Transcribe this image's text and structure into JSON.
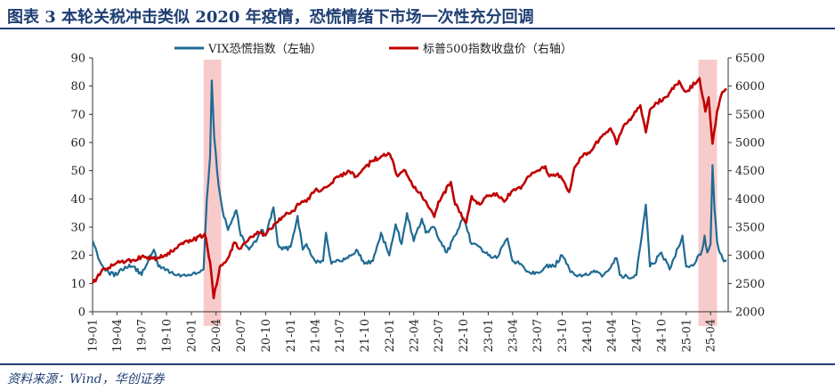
{
  "title": "图表 3   本轮关税冲击类似 2020 年疫情，恐慌情绪下市场一次性充分回调",
  "source": "资料来源：Wind，华创证券",
  "colors": {
    "title": "#1f3f73",
    "vix": "#1f6b93",
    "spx": "#c00000",
    "highlight": "#f7c5c5"
  },
  "chart_data": {
    "type": "line",
    "legend_position": "top",
    "grid": false,
    "x_tick_labels": [
      "19-01",
      "19-04",
      "19-07",
      "19-10",
      "20-01",
      "20-04",
      "20-07",
      "20-10",
      "21-01",
      "21-04",
      "21-07",
      "21-10",
      "22-01",
      "22-04",
      "22-07",
      "22-10",
      "23-01",
      "23-04",
      "23-07",
      "23-10",
      "24-01",
      "24-04",
      "24-07",
      "24-10",
      "25-01",
      "25-04"
    ],
    "y_left": {
      "min": 0,
      "max": 90,
      "ticks": [
        "0",
        "10",
        "20",
        "30",
        "40",
        "50",
        "60",
        "70",
        "80",
        "90"
      ]
    },
    "y_right": {
      "min": 2000,
      "max": 6500,
      "ticks": [
        "2000",
        "2500",
        "3000",
        "3500",
        "4000",
        "4500",
        "5000",
        "5500",
        "6000",
        "6500"
      ]
    },
    "highlight_periods": [
      {
        "from": "2020-02-15",
        "to": "2020-04-20"
      },
      {
        "from": "2025-02-15",
        "to": "2025-04-25"
      }
    ],
    "series": [
      {
        "name": "VIX恐慌指数（左轴）",
        "axis": "left",
        "x": [
          "2019-01-02",
          "2019-02-01",
          "2019-03-01",
          "2019-04-01",
          "2019-05-01",
          "2019-06-01",
          "2019-07-01",
          "2019-08-01",
          "2019-08-15",
          "2019-09-01",
          "2019-10-01",
          "2019-11-01",
          "2019-12-01",
          "2020-01-01",
          "2020-02-01",
          "2020-02-15",
          "2020-02-27",
          "2020-03-10",
          "2020-03-16",
          "2020-03-25",
          "2020-04-10",
          "2020-04-25",
          "2020-05-15",
          "2020-06-01",
          "2020-06-15",
          "2020-07-01",
          "2020-08-01",
          "2020-09-01",
          "2020-09-15",
          "2020-10-01",
          "2020-10-30",
          "2020-11-15",
          "2020-12-01",
          "2021-01-01",
          "2021-01-27",
          "2021-02-15",
          "2021-03-01",
          "2021-04-01",
          "2021-05-01",
          "2021-05-12",
          "2021-06-01",
          "2021-07-01",
          "2021-08-01",
          "2021-09-01",
          "2021-10-01",
          "2021-11-01",
          "2021-12-01",
          "2022-01-01",
          "2022-01-24",
          "2022-02-15",
          "2022-03-07",
          "2022-04-01",
          "2022-05-01",
          "2022-05-15",
          "2022-06-15",
          "2022-07-01",
          "2022-08-01",
          "2022-09-01",
          "2022-10-01",
          "2022-11-01",
          "2022-12-01",
          "2023-01-01",
          "2023-02-01",
          "2023-03-13",
          "2023-04-01",
          "2023-05-01",
          "2023-06-01",
          "2023-07-01",
          "2023-08-01",
          "2023-09-01",
          "2023-10-01",
          "2023-11-01",
          "2023-12-01",
          "2024-01-01",
          "2024-02-01",
          "2024-03-01",
          "2024-04-19",
          "2024-05-01",
          "2024-06-01",
          "2024-07-01",
          "2024-08-05",
          "2024-08-20",
          "2024-09-01",
          "2024-10-01",
          "2024-11-01",
          "2024-12-18",
          "2025-01-01",
          "2025-02-01",
          "2025-03-01",
          "2025-03-10",
          "2025-03-20",
          "2025-04-01",
          "2025-04-08",
          "2025-04-15",
          "2025-04-25",
          "2025-05-01",
          "2025-05-15",
          "2025-05-30"
        ],
        "values": [
          25,
          17,
          14,
          13,
          16,
          16,
          13,
          20,
          22,
          16,
          15,
          13,
          13,
          13,
          14,
          15,
          40,
          55,
          82,
          62,
          45,
          36,
          29,
          33,
          36,
          27,
          22,
          26,
          29,
          27,
          37,
          24,
          22,
          23,
          34,
          22,
          24,
          18,
          18,
          28,
          17,
          18,
          19,
          22,
          17,
          18,
          28,
          20,
          31,
          24,
          35,
          25,
          33,
          28,
          30,
          26,
          21,
          27,
          33,
          24,
          23,
          20,
          19,
          26,
          18,
          17,
          14,
          14,
          16,
          16,
          20,
          14,
          13,
          13,
          14,
          13,
          19,
          13,
          12,
          13,
          38,
          16,
          17,
          21,
          15,
          27,
          16,
          17,
          22,
          27,
          21,
          24,
          52,
          37,
          25,
          22,
          19,
          18
        ]
      },
      {
        "name": "标普500指数收盘价（右轴）",
        "axis": "right",
        "x": [
          "2019-01-02",
          "2019-02-01",
          "2019-03-01",
          "2019-04-01",
          "2019-05-01",
          "2019-06-01",
          "2019-07-01",
          "2019-08-01",
          "2019-09-01",
          "2019-10-01",
          "2019-11-01",
          "2019-12-01",
          "2020-01-01",
          "2020-02-19",
          "2020-03-10",
          "2020-03-23",
          "2020-04-15",
          "2020-05-15",
          "2020-06-08",
          "2020-07-01",
          "2020-08-01",
          "2020-09-01",
          "2020-10-01",
          "2020-11-01",
          "2020-12-01",
          "2021-01-01",
          "2021-02-01",
          "2021-03-01",
          "2021-04-01",
          "2021-05-01",
          "2021-06-01",
          "2021-07-01",
          "2021-08-01",
          "2021-09-01",
          "2021-10-01",
          "2021-11-01",
          "2021-12-01",
          "2022-01-03",
          "2022-02-01",
          "2022-03-01",
          "2022-04-01",
          "2022-05-01",
          "2022-06-16",
          "2022-07-01",
          "2022-08-16",
          "2022-09-01",
          "2022-10-12",
          "2022-11-01",
          "2022-12-01",
          "2023-01-01",
          "2023-02-01",
          "2023-03-01",
          "2023-04-01",
          "2023-05-01",
          "2023-06-01",
          "2023-07-31",
          "2023-08-15",
          "2023-09-15",
          "2023-10-27",
          "2023-11-15",
          "2023-12-15",
          "2024-01-15",
          "2024-02-15",
          "2024-03-28",
          "2024-04-19",
          "2024-05-15",
          "2024-06-15",
          "2024-07-16",
          "2024-08-05",
          "2024-08-20",
          "2024-09-15",
          "2024-10-15",
          "2024-11-15",
          "2024-12-06",
          "2025-01-01",
          "2025-02-19",
          "2025-03-13",
          "2025-03-25",
          "2025-04-08",
          "2025-04-25",
          "2025-05-15",
          "2025-05-30"
        ],
        "values": [
          2510,
          2700,
          2780,
          2870,
          2880,
          2920,
          2980,
          2930,
          2960,
          2990,
          3120,
          3200,
          3250,
          3380,
          2880,
          2240,
          2800,
          2950,
          3230,
          3120,
          3300,
          3420,
          3360,
          3550,
          3680,
          3750,
          3900,
          3950,
          4150,
          4180,
          4280,
          4400,
          4500,
          4400,
          4550,
          4680,
          4750,
          4790,
          4400,
          4500,
          4200,
          4050,
          3680,
          3950,
          4300,
          3900,
          3580,
          4050,
          3900,
          4050,
          4100,
          3950,
          4150,
          4180,
          4400,
          4580,
          4400,
          4450,
          4120,
          4550,
          4750,
          4850,
          5050,
          5250,
          4970,
          5300,
          5450,
          5660,
          5180,
          5580,
          5700,
          5800,
          5950,
          6090,
          5900,
          6140,
          5550,
          5800,
          4980,
          5550,
          5900,
          5950
        ]
      }
    ]
  }
}
